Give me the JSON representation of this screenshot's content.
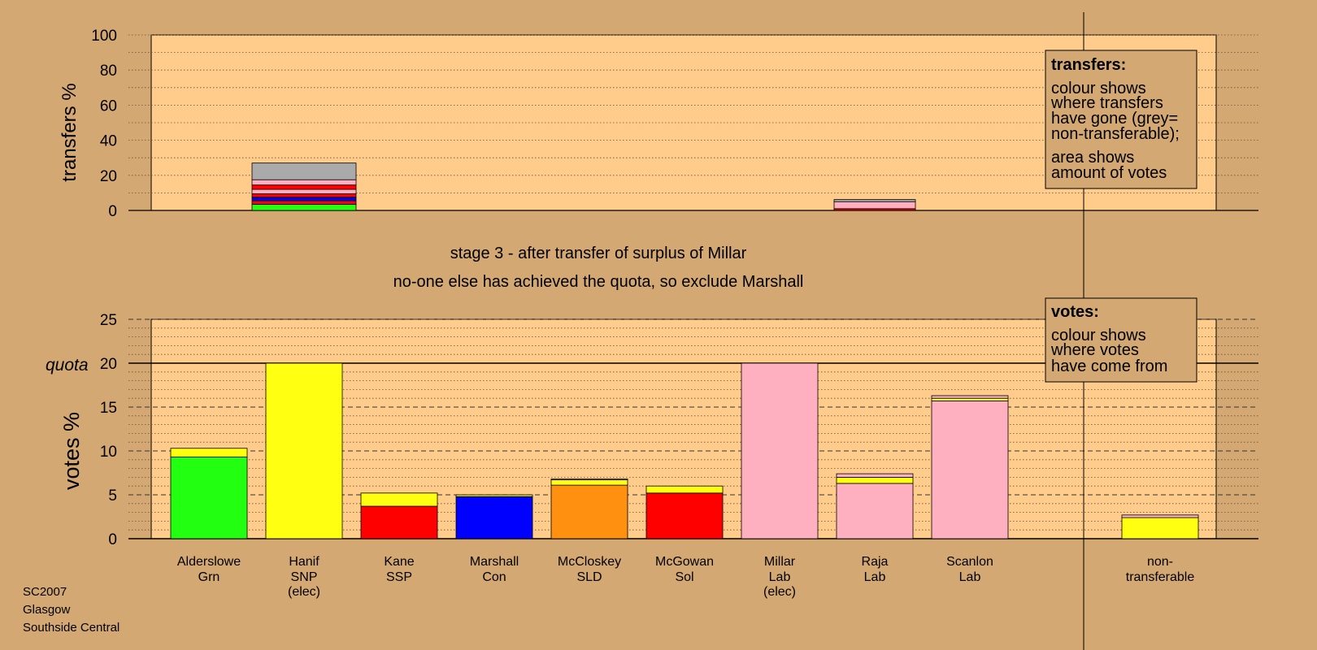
{
  "chart_data": [
    {
      "type": "bar",
      "stacked": true,
      "ylabel": "transfers %",
      "ylim": [
        0,
        100
      ],
      "yticks": [
        0,
        20,
        40,
        60,
        80,
        100
      ],
      "grid": "dotted every 10",
      "bars": [
        {
          "candidate_index": 1,
          "segments": [
            {
              "color": "#22ff11",
              "value": 3.5
            },
            {
              "color": "#ff0000",
              "value": 2
            },
            {
              "color": "#0000ff",
              "value": 2
            },
            {
              "color": "#ff0000",
              "value": 2
            },
            {
              "color": "#ffb0c0",
              "value": 2.5
            },
            {
              "color": "#ff0000",
              "value": 2.5
            },
            {
              "color": "#ffb0c0",
              "value": 3
            },
            {
              "color": "#aaaaaa",
              "value": 9.5
            }
          ]
        },
        {
          "candidate_index": 7,
          "segments": [
            {
              "color": "#ff0000",
              "value": 1
            },
            {
              "color": "#ffb0c0",
              "value": 4
            },
            {
              "color": "#aaaaaa",
              "value": 1.2
            }
          ]
        }
      ]
    },
    {
      "type": "bar",
      "stacked": true,
      "ylabel": "votes %",
      "ylim": [
        0,
        25
      ],
      "yticks": [
        0,
        5,
        10,
        15,
        20,
        25
      ],
      "quota": 20,
      "quota_label": "quota",
      "grid": "dotted every 1, dashed every 5",
      "candidates": [
        {
          "name": "Alderslowe",
          "party": "Grn",
          "note": "",
          "segments": [
            {
              "color": "#22ff11",
              "value": 9.3
            },
            {
              "color": "#ffff11",
              "value": 1.0
            }
          ]
        },
        {
          "name": "Hanif",
          "party": "SNP",
          "note": "(elec)",
          "segments": [
            {
              "color": "#ffff11",
              "value": 20
            }
          ]
        },
        {
          "name": "Kane",
          "party": "SSP",
          "note": "",
          "segments": [
            {
              "color": "#ff0000",
              "value": 3.7
            },
            {
              "color": "#ffff11",
              "value": 1.5
            }
          ]
        },
        {
          "name": "Marshall",
          "party": "Con",
          "note": "",
          "segments": [
            {
              "color": "#0000ff",
              "value": 4.8
            },
            {
              "color": "#ffff11",
              "value": 0.2
            }
          ]
        },
        {
          "name": "McCloskey",
          "party": "SLD",
          "note": "",
          "segments": [
            {
              "color": "#ff9010",
              "value": 6.1
            },
            {
              "color": "#ffff11",
              "value": 0.6
            },
            {
              "color": "#ffb0c0",
              "value": 0.1
            }
          ]
        },
        {
          "name": "McGowan",
          "party": "Sol",
          "note": "",
          "segments": [
            {
              "color": "#ff0000",
              "value": 5.2
            },
            {
              "color": "#ffff11",
              "value": 0.8
            }
          ]
        },
        {
          "name": "Millar",
          "party": "Lab",
          "note": "(elec)",
          "segments": [
            {
              "color": "#ffb0c0",
              "value": 20
            }
          ]
        },
        {
          "name": "Raja",
          "party": "Lab",
          "note": "",
          "segments": [
            {
              "color": "#ffb0c0",
              "value": 6.3
            },
            {
              "color": "#ffff11",
              "value": 0.7
            },
            {
              "color": "#ffb0c0",
              "value": 0.4
            }
          ]
        },
        {
          "name": "Scanlon",
          "party": "Lab",
          "note": "",
          "segments": [
            {
              "color": "#ffb0c0",
              "value": 15.7
            },
            {
              "color": "#ffff11",
              "value": 0.3
            },
            {
              "color": "#ffb0c0",
              "value": 0.3
            }
          ]
        }
      ],
      "nontransferable": {
        "name": "non-",
        "party": "transferable",
        "segments": [
          {
            "color": "#ffff11",
            "value": 2.4
          },
          {
            "color": "#ffb0c0",
            "value": 0.3
          }
        ]
      }
    }
  ],
  "stage_title": "stage 3 - after transfer of surplus of Millar",
  "stage_subtitle": "no-one else has achieved the quota, so exclude Marshall",
  "legend_transfers": {
    "heading": "transfers:",
    "lines1": [
      "colour shows",
      "where transfers",
      "have gone (grey=",
      "non-transferable);"
    ],
    "lines2": [
      "area shows",
      "amount of votes"
    ]
  },
  "legend_votes": {
    "heading": "votes:",
    "lines": [
      "colour shows",
      "where votes",
      "have come from"
    ]
  },
  "footer": {
    "line1": "SC2007",
    "line2": "Glasgow",
    "line3": "Southside Central"
  },
  "colors": {
    "background": "#d4a872",
    "plot_area": "#ffcc8c"
  }
}
